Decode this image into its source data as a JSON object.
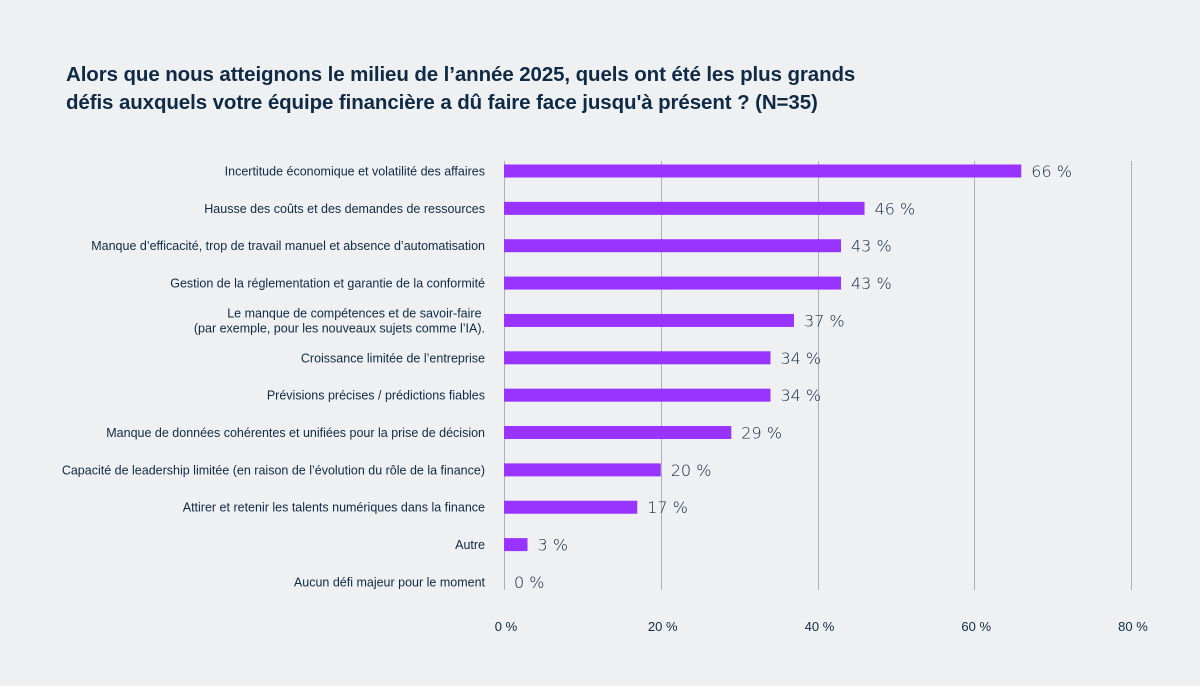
{
  "chart_data": {
    "type": "bar",
    "orientation": "horizontal",
    "title_lines": [
      "Alors que nous atteignons le milieu de l’année 2025, quels ont été les plus grands",
      "défis auxquels votre équipe financière a dû faire face jusqu'à présent ? (N=35)"
    ],
    "categories": [
      [
        "Incertitude économique et volatilité des affaires"
      ],
      [
        "Hausse des coûts et des demandes de ressources"
      ],
      [
        "Manque d’efficacité, trop de travail manuel et absence d’automatisation"
      ],
      [
        "Gestion de la réglementation et garantie de la conformité"
      ],
      [
        "Le manque de compétences et de savoir-faire ",
        "(par exemple, pour les nouveaux sujets comme l’IA)."
      ],
      [
        "Croissance limitée de l’entreprise"
      ],
      [
        "Prévisions précises / prédictions fiables"
      ],
      [
        "Manque de données cohérentes et unifiées pour la prise de décision"
      ],
      [
        "Capacité de leadership limitée (en raison de l’évolution du rôle de la finance)"
      ],
      [
        "Attirer et retenir les talents numériques dans la finance"
      ],
      [
        "Autre"
      ],
      [
        "Aucun défi majeur pour le moment"
      ]
    ],
    "values": [
      66,
      46,
      43,
      43,
      37,
      34,
      34,
      29,
      20,
      17,
      3,
      0
    ],
    "value_labels": [
      "66 %",
      "46 %",
      "43 %",
      "43 %",
      "37 %",
      "34 %",
      "34 %",
      "29 %",
      "20 %",
      "17 %",
      "3 %",
      "0 %"
    ],
    "xlim": [
      0,
      80
    ],
    "xticks": [
      0,
      20,
      40,
      60,
      80
    ],
    "xtick_labels": [
      "0 %",
      "20 %",
      "40 %",
      "60 %",
      "80 %"
    ],
    "xlabel": "",
    "ylabel": "",
    "grid": "vertical",
    "legend": "none",
    "colors": {
      "bar": "#9933ff",
      "grid": "#a9b1bb",
      "text": "#0f2a44",
      "background": "#eff0f2"
    }
  }
}
